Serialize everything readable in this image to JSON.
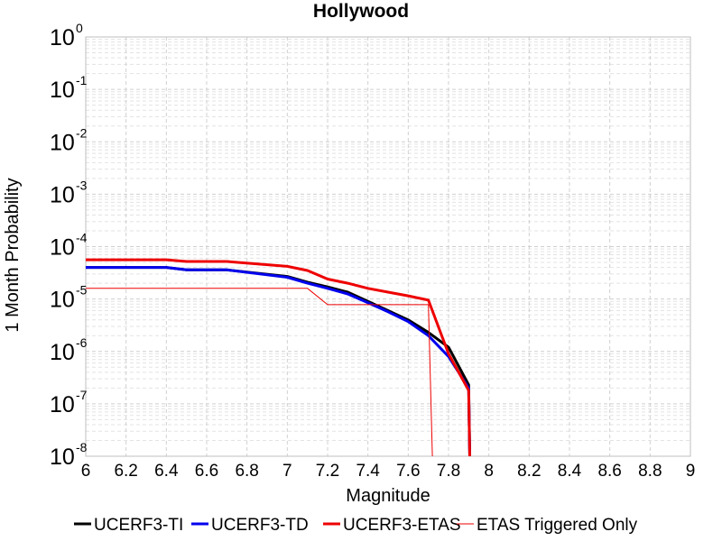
{
  "chart_data": {
    "type": "line",
    "title": "Hollywood",
    "xlabel": "Magnitude",
    "ylabel": "1 Month Probability",
    "xlim": [
      6,
      9
    ],
    "ylim": [
      1e-08,
      1
    ],
    "yscale": "log",
    "grid": true,
    "legend_placement": "bottom",
    "x_ticks": [
      "6",
      "6.2",
      "6.4",
      "6.6",
      "6.8",
      "7",
      "7.2",
      "7.4",
      "7.6",
      "7.8",
      "8",
      "8.2",
      "8.4",
      "8.6",
      "8.8",
      "9"
    ],
    "y_ticks": [
      {
        "base": "10",
        "exp": "0"
      },
      {
        "base": "10",
        "exp": "-1"
      },
      {
        "base": "10",
        "exp": "-2"
      },
      {
        "base": "10",
        "exp": "-3"
      },
      {
        "base": "10",
        "exp": "-4"
      },
      {
        "base": "10",
        "exp": "-5"
      },
      {
        "base": "10",
        "exp": "-6"
      },
      {
        "base": "10",
        "exp": "-7"
      },
      {
        "base": "10",
        "exp": "-8"
      }
    ],
    "series": [
      {
        "name": "UCERF3-TI",
        "color": "#000000",
        "width": 3,
        "points": [
          [
            6.0,
            4e-05
          ],
          [
            6.4,
            4e-05
          ],
          [
            6.5,
            3.6e-05
          ],
          [
            6.7,
            3.6e-05
          ],
          [
            7.0,
            2.7e-05
          ],
          [
            7.1,
            2.1e-05
          ],
          [
            7.2,
            1.7e-05
          ],
          [
            7.3,
            1.35e-05
          ],
          [
            7.4,
            9e-06
          ],
          [
            7.5,
            6e-06
          ],
          [
            7.6,
            4e-06
          ],
          [
            7.7,
            2.3e-06
          ],
          [
            7.8,
            1.2e-06
          ],
          [
            7.9,
            2.3e-07
          ],
          [
            7.905,
            1e-08
          ]
        ]
      },
      {
        "name": "UCERF3-TD",
        "color": "#0000ee",
        "width": 3,
        "points": [
          [
            6.0,
            4e-05
          ],
          [
            6.4,
            4e-05
          ],
          [
            6.5,
            3.6e-05
          ],
          [
            6.7,
            3.6e-05
          ],
          [
            7.0,
            2.6e-05
          ],
          [
            7.1,
            2e-05
          ],
          [
            7.2,
            1.6e-05
          ],
          [
            7.3,
            1.25e-05
          ],
          [
            7.4,
            8.5e-06
          ],
          [
            7.5,
            5.7e-06
          ],
          [
            7.6,
            3.7e-06
          ],
          [
            7.7,
            2e-06
          ],
          [
            7.8,
            8e-07
          ],
          [
            7.9,
            2e-07
          ],
          [
            7.905,
            1e-08
          ]
        ]
      },
      {
        "name": "UCERF3-ETAS",
        "color": "#ee0000",
        "width": 3,
        "points": [
          [
            6.0,
            5.6e-05
          ],
          [
            6.4,
            5.6e-05
          ],
          [
            6.5,
            5.2e-05
          ],
          [
            6.7,
            5.2e-05
          ],
          [
            7.0,
            4.2e-05
          ],
          [
            7.1,
            3.5e-05
          ],
          [
            7.2,
            2.4e-05
          ],
          [
            7.3,
            2e-05
          ],
          [
            7.4,
            1.6e-05
          ],
          [
            7.5,
            1.35e-05
          ],
          [
            7.6,
            1.15e-05
          ],
          [
            7.7,
            9.5e-06
          ],
          [
            7.8,
            9e-07
          ],
          [
            7.9,
            1.8e-07
          ],
          [
            7.905,
            1e-08
          ]
        ]
      },
      {
        "name": "ETAS Triggered Only",
        "color": "#ee0000",
        "width": 1,
        "points": [
          [
            6.0,
            1.6e-05
          ],
          [
            7.1,
            1.6e-05
          ],
          [
            7.2,
            7.8e-06
          ],
          [
            7.7,
            7.8e-06
          ],
          [
            7.72,
            1e-08
          ]
        ]
      }
    ]
  }
}
